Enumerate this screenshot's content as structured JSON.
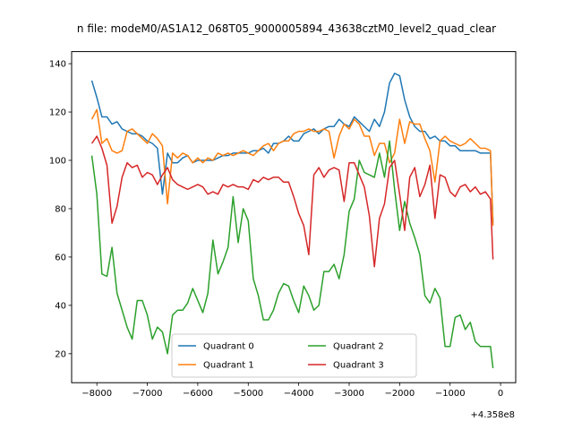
{
  "chart_data": {
    "type": "line",
    "title": "n file: modeM0/AS1A12_068T05_9000005894_43638cztM0_level2_quad_clear",
    "xlabel": "",
    "ylabel": "",
    "x_offset_label": "+4.358e8",
    "xlim": [
      -8500,
      300
    ],
    "ylim": [
      8,
      145
    ],
    "x_ticks": [
      -8000,
      -7000,
      -6000,
      -5000,
      -4000,
      -3000,
      -2000,
      -1000,
      0
    ],
    "x_tick_labels": [
      "−8000",
      "−7000",
      "−6000",
      "−5000",
      "−4000",
      "−3000",
      "−2000",
      "−1000",
      "0"
    ],
    "y_ticks": [
      20,
      40,
      60,
      80,
      100,
      120,
      140
    ],
    "y_tick_labels": [
      "20",
      "40",
      "60",
      "80",
      "100",
      "120",
      "140"
    ],
    "grid": false,
    "legend_position": "lower-center",
    "x": [
      -8100,
      -8000,
      -7900,
      -7800,
      -7700,
      -7600,
      -7500,
      -7400,
      -7300,
      -7200,
      -7100,
      -7000,
      -6900,
      -6800,
      -6700,
      -6600,
      -6500,
      -6400,
      -6300,
      -6200,
      -6100,
      -6000,
      -5900,
      -5800,
      -5700,
      -5600,
      -5500,
      -5400,
      -5300,
      -5200,
      -5100,
      -5000,
      -4900,
      -4800,
      -4700,
      -4600,
      -4500,
      -4400,
      -4300,
      -4200,
      -4100,
      -4000,
      -3900,
      -3800,
      -3700,
      -3600,
      -3500,
      -3400,
      -3300,
      -3200,
      -3100,
      -3000,
      -2900,
      -2800,
      -2700,
      -2600,
      -2500,
      -2400,
      -2300,
      -2200,
      -2100,
      -2000,
      -1900,
      -1800,
      -1700,
      -1600,
      -1500,
      -1400,
      -1300,
      -1200,
      -1100,
      -1000,
      -900,
      -800,
      -700,
      -600,
      -500,
      -400,
      -300,
      -200,
      -150
    ],
    "series": [
      {
        "name": "Quadrant 0",
        "color": "#1f77b4",
        "values": [
          133,
          126,
          118,
          118,
          115,
          116,
          113,
          112,
          111,
          111,
          110,
          108,
          107,
          105,
          86,
          103,
          99,
          99,
          101,
          102,
          99,
          100,
          100,
          100,
          100,
          101,
          102,
          102,
          103,
          103,
          103,
          103,
          104,
          104,
          105,
          103,
          107,
          107,
          108,
          110,
          108,
          108,
          111,
          112,
          113,
          111,
          113,
          114,
          114,
          117,
          115,
          114,
          118,
          116,
          114,
          112,
          117,
          114,
          120,
          132,
          136,
          135,
          125,
          118,
          114,
          112,
          112,
          109,
          110,
          108,
          108,
          106,
          106,
          104,
          104,
          104,
          104,
          103,
          103,
          103,
          74
        ]
      },
      {
        "name": "Quadrant 1",
        "color": "#ff7f0e",
        "values": [
          117,
          121,
          107,
          109,
          104,
          103,
          104,
          112,
          113,
          111,
          109,
          107,
          111,
          109,
          106,
          82,
          103,
          101,
          103,
          102,
          99,
          101,
          99,
          101,
          100,
          103,
          102,
          103,
          102,
          103,
          104,
          103,
          102,
          104,
          106,
          107,
          104,
          107,
          108,
          108,
          111,
          112,
          112,
          113,
          112,
          112,
          113,
          112,
          101,
          110,
          115,
          113,
          117,
          115,
          110,
          110,
          102,
          107,
          107,
          99,
          103,
          117,
          107,
          116,
          115,
          115,
          109,
          104,
          91,
          108,
          110,
          108,
          107,
          106,
          107,
          109,
          107,
          105,
          105,
          104,
          73
        ]
      },
      {
        "name": "Quadrant 2",
        "color": "#2ca02c",
        "values": [
          102,
          86,
          53,
          52,
          64,
          45,
          38,
          31,
          26,
          42,
          42,
          36,
          26,
          31,
          29,
          20,
          36,
          38,
          38,
          41,
          47,
          42,
          37,
          45,
          67,
          53,
          58,
          64,
          85,
          66,
          80,
          75,
          51,
          44,
          34,
          34,
          38,
          45,
          49,
          48,
          42,
          37,
          48,
          44,
          38,
          40,
          54,
          54,
          57,
          51,
          61,
          79,
          84,
          100,
          95,
          94,
          93,
          103,
          93,
          108,
          88,
          71,
          83,
          74,
          68,
          61,
          44,
          41,
          47,
          43,
          23,
          23,
          35,
          36,
          30,
          33,
          25,
          23,
          23,
          23,
          14
        ]
      },
      {
        "name": "Quadrant 3",
        "color": "#d62728",
        "values": [
          107,
          110,
          105,
          98,
          74,
          81,
          93,
          99,
          97,
          98,
          93,
          95,
          94,
          90,
          94,
          97,
          92,
          90,
          89,
          88,
          89,
          90,
          89,
          86,
          87,
          86,
          90,
          89,
          90,
          89,
          89,
          88,
          92,
          91,
          93,
          92,
          93,
          93,
          91,
          91,
          85,
          78,
          73,
          61,
          94,
          97,
          93,
          96,
          97,
          96,
          83,
          99,
          99,
          94,
          89,
          77,
          56,
          76,
          82,
          97,
          100,
          86,
          71,
          93,
          97,
          85,
          90,
          98,
          76,
          94,
          93,
          87,
          85,
          89,
          90,
          87,
          89,
          86,
          87,
          84,
          59
        ]
      }
    ]
  }
}
